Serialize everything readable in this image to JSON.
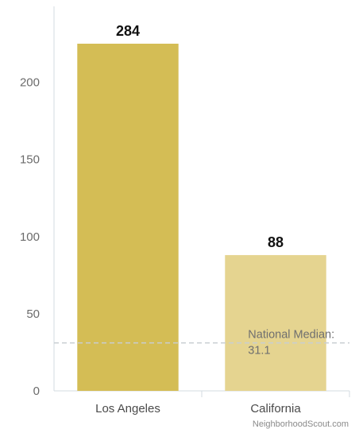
{
  "chart_data": {
    "type": "bar",
    "categories": [
      "Los Angeles",
      "California"
    ],
    "values": [
      284,
      88
    ],
    "data_labels": [
      "284",
      "88"
    ],
    "ylim": [
      0,
      225
    ],
    "yticks": [
      0,
      50,
      100,
      150,
      200
    ],
    "grid": false,
    "reference_line": {
      "value": 31.1,
      "label_line1": "National Median:",
      "label_line2": "31.1"
    },
    "colors": [
      "#d4bd55",
      "#e5d490"
    ],
    "reference_line_color": "#c8cdd2",
    "credit": "NeighborhoodScout.com"
  }
}
